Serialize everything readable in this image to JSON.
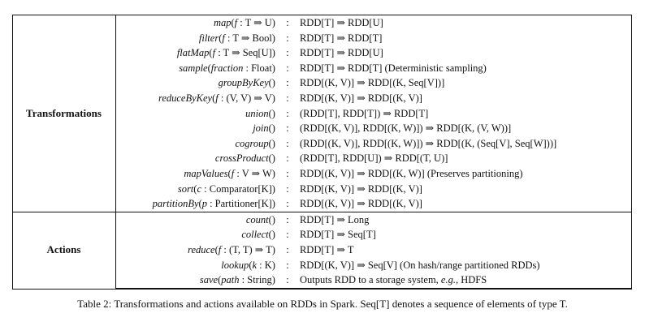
{
  "table": {
    "transformations": {
      "label": "Transformations",
      "rows": [
        {
          "op": "map(f : T ⇒ U)",
          "sep": ":",
          "sig": "RDD[T] ⇒ RDD[U]"
        },
        {
          "op": "filter(f : T ⇒ Bool)",
          "sep": ":",
          "sig": "RDD[T] ⇒ RDD[T]"
        },
        {
          "op": "flatMap(f : T ⇒ Seq[U])",
          "sep": ":",
          "sig": "RDD[T] ⇒ RDD[U]"
        },
        {
          "op": "sample(fraction : Float)",
          "sep": ":",
          "sig": "RDD[T] ⇒ RDD[T]  (Deterministic sampling)"
        },
        {
          "op": "groupByKey()",
          "sep": ":",
          "sig": "RDD[(K, V)] ⇒ RDD[(K, Seq[V])]"
        },
        {
          "op": "reduceByKey(f : (V, V) ⇒ V)",
          "sep": ":",
          "sig": "RDD[(K, V)] ⇒ RDD[(K, V)]"
        },
        {
          "op": "union()",
          "sep": ":",
          "sig": "(RDD[T], RDD[T]) ⇒ RDD[T]"
        },
        {
          "op": "join()",
          "sep": ":",
          "sig": "(RDD[(K, V)], RDD[(K, W)]) ⇒ RDD[(K, (V, W))]"
        },
        {
          "op": "cogroup()",
          "sep": ":",
          "sig": "(RDD[(K, V)], RDD[(K, W)]) ⇒ RDD[(K, (Seq[V], Seq[W]))]"
        },
        {
          "op": "crossProduct()",
          "sep": ":",
          "sig": "(RDD[T], RDD[U]) ⇒ RDD[(T, U)]"
        },
        {
          "op": "mapValues(f : V ⇒ W)",
          "sep": ":",
          "sig": "RDD[(K, V)] ⇒ RDD[(K, W)]  (Preserves partitioning)"
        },
        {
          "op": "sort(c : Comparator[K])",
          "sep": ":",
          "sig": "RDD[(K, V)] ⇒ RDD[(K, V)]"
        },
        {
          "op": "partitionBy(p : Partitioner[K])",
          "sep": ":",
          "sig": "RDD[(K, V)] ⇒ RDD[(K, V)]"
        }
      ]
    },
    "actions": {
      "label": "Actions",
      "rows": [
        {
          "op": "count()",
          "sep": ":",
          "sig": "RDD[T] ⇒ Long"
        },
        {
          "op": "collect()",
          "sep": ":",
          "sig": "RDD[T] ⇒ Seq[T]"
        },
        {
          "op": "reduce(f : (T, T) ⇒ T)",
          "sep": ":",
          "sig": "RDD[T] ⇒ T"
        },
        {
          "op": "lookup(k : K)",
          "sep": ":",
          "sig": "RDD[(K, V)] ⇒ Seq[V]  (On hash/range partitioned RDDs)"
        },
        {
          "op": "save(path : String)",
          "sep": ":",
          "sig": "Outputs RDD to a storage system, e.g., HDFS"
        }
      ]
    }
  },
  "caption": "Table 2: Transformations and actions available on RDDs in Spark. Seq[T] denotes a sequence of elements of type T."
}
